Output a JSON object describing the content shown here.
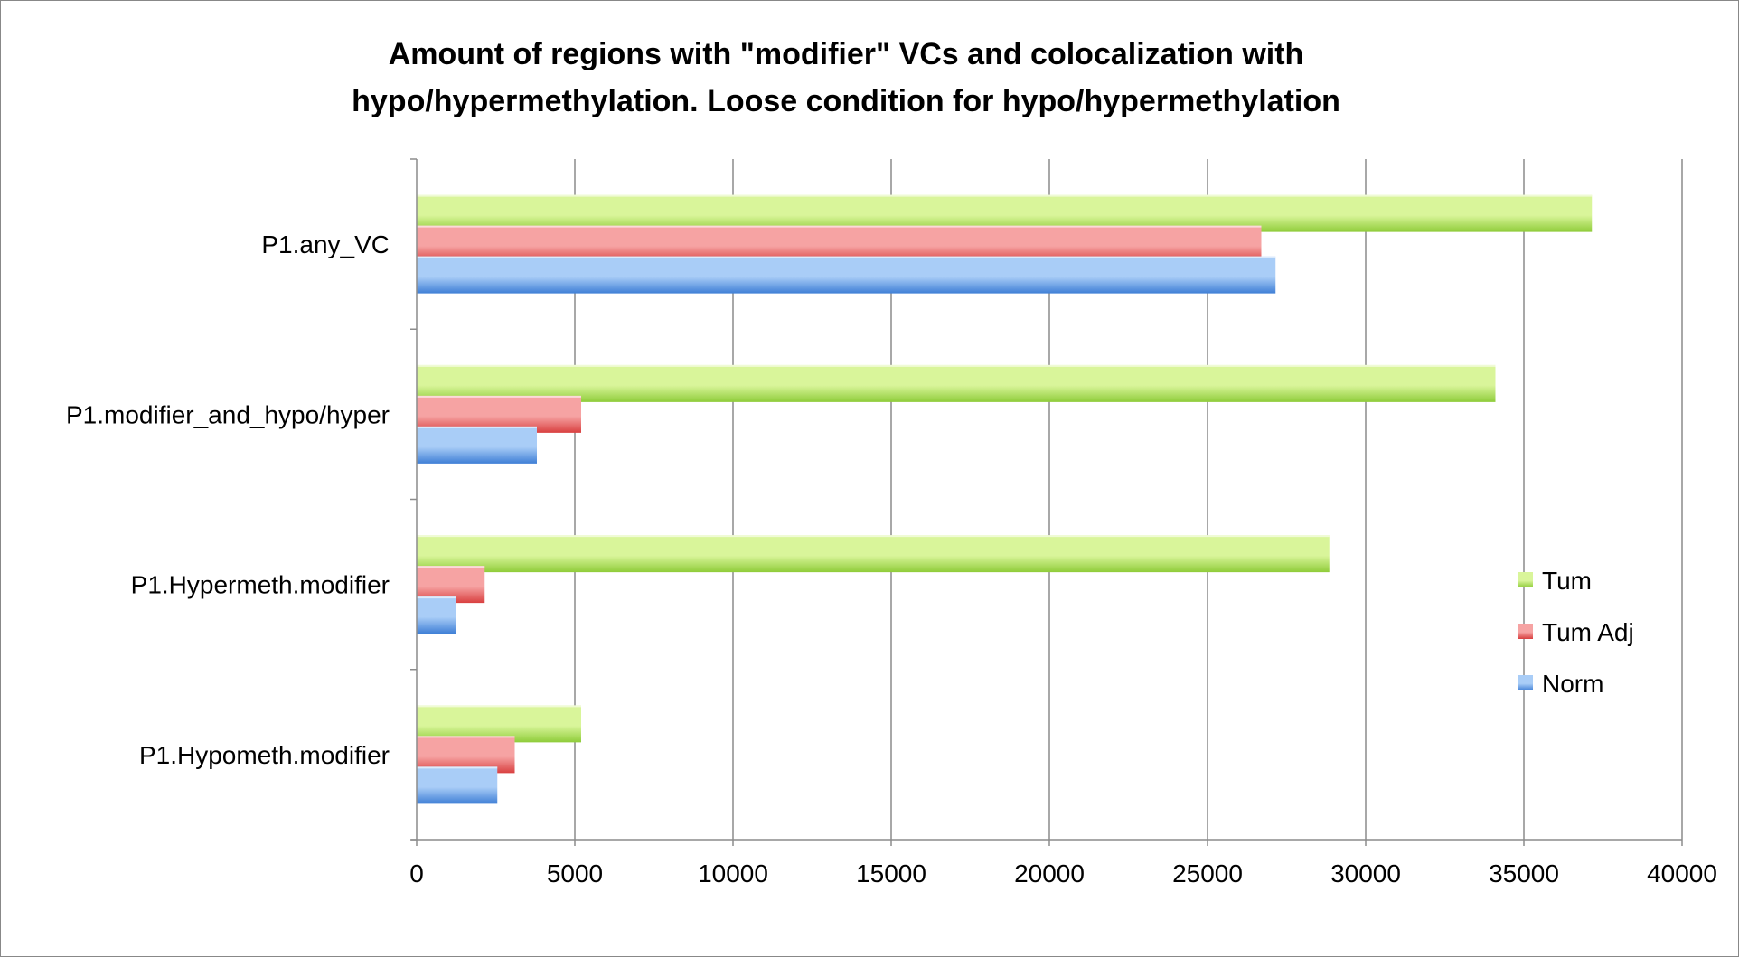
{
  "chart_data": {
    "type": "bar",
    "orientation": "horizontal",
    "title_lines": [
      "Amount of regions with \"modifier\" VCs and colocalization with",
      "hypo/hypermethylation. Loose condition for hypo/hypermethylation"
    ],
    "categories": [
      "P1.any_VC",
      "P1.modifier_and_hypo/hyper",
      "P1.Hypermeth.modifier",
      "P1.Hypometh.modifier"
    ],
    "series": [
      {
        "name": "Tum",
        "values": [
          37150,
          34100,
          28850,
          5200
        ]
      },
      {
        "name": "Tum Adj",
        "values": [
          26700,
          5200,
          2150,
          3100
        ]
      },
      {
        "name": "Norm",
        "values": [
          27150,
          3800,
          1250,
          2550
        ]
      }
    ],
    "xlim": [
      0,
      40000
    ],
    "xticks": [
      "0",
      "5000",
      "10000",
      "15000",
      "20000",
      "25000",
      "30000",
      "35000",
      "40000"
    ],
    "grid": true,
    "legend_position": "right",
    "colors": {
      "Tum": [
        "#d9f59a",
        "#8fcc3a"
      ],
      "Tum Adj": [
        "#f6a3a3",
        "#d94040"
      ],
      "Norm": [
        "#a9cdf7",
        "#3f7fd6"
      ]
    }
  }
}
